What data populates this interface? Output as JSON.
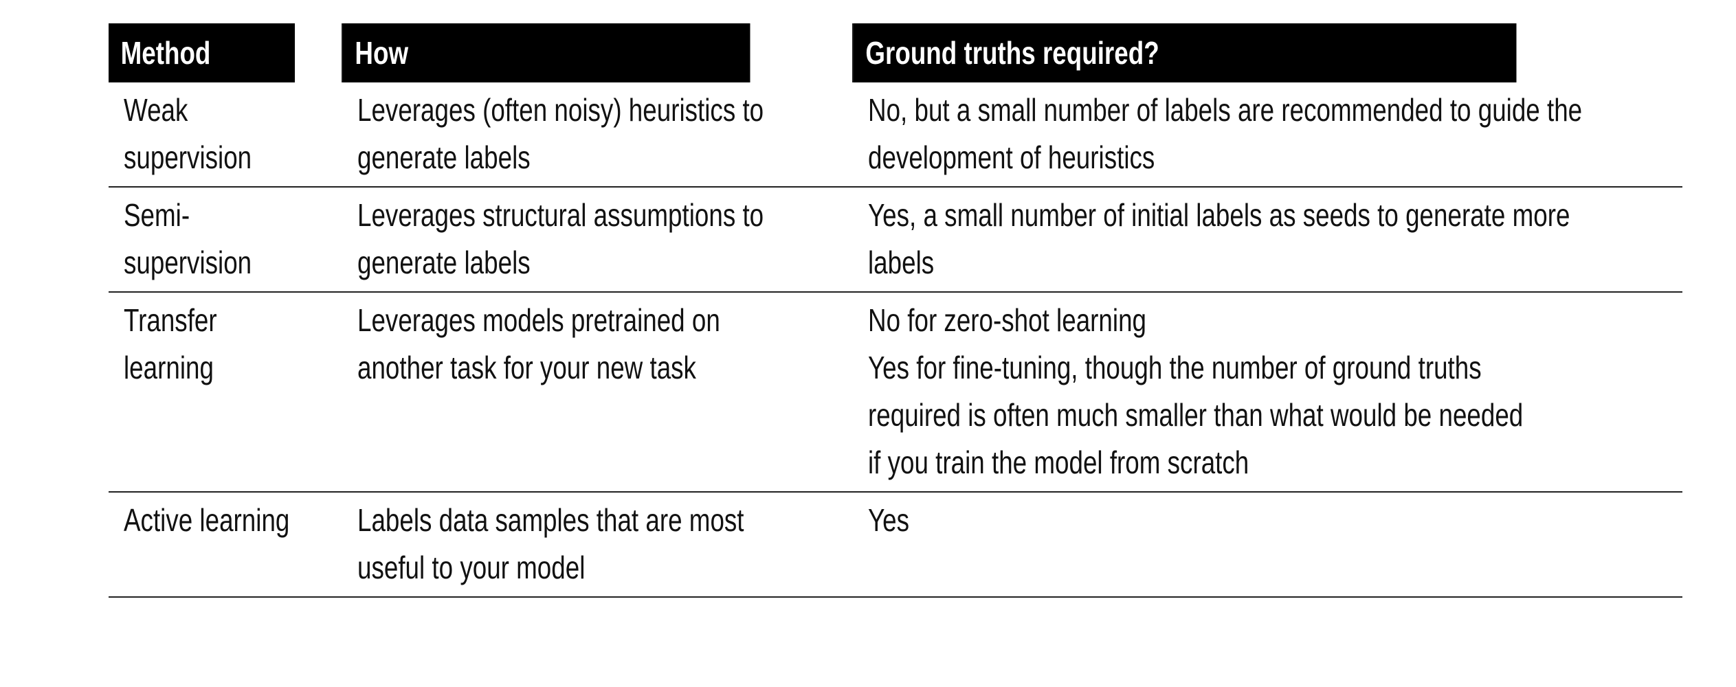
{
  "table": {
    "headers": {
      "method": "Method",
      "how": "How",
      "ground_truths": "Ground truths required?"
    },
    "rows": [
      {
        "method": [
          "Weak",
          "supervision"
        ],
        "how": [
          "Leverages (often noisy) heuristics to",
          "generate labels"
        ],
        "ground_truths": [
          "No, but a small number of labels are recommended to guide the",
          "development of heuristics"
        ]
      },
      {
        "method": [
          "Semi-",
          "supervision"
        ],
        "how": [
          "Leverages structural assumptions to",
          "generate labels"
        ],
        "ground_truths": [
          "Yes, a small number of initial labels as seeds to generate more",
          "labels"
        ]
      },
      {
        "method": [
          "Transfer",
          "learning"
        ],
        "how": [
          "Leverages models pretrained on",
          "another task for your new task"
        ],
        "ground_truths": [
          "No for zero-shot learning",
          "Yes for fine-tuning, though the number of ground truths",
          "required is often much smaller than what would be needed",
          "if you train the model from scratch"
        ]
      },
      {
        "method": [
          "Active learning"
        ],
        "how": [
          "Labels data samples that are most",
          "useful to your model"
        ],
        "ground_truths": [
          "Yes"
        ]
      }
    ]
  }
}
